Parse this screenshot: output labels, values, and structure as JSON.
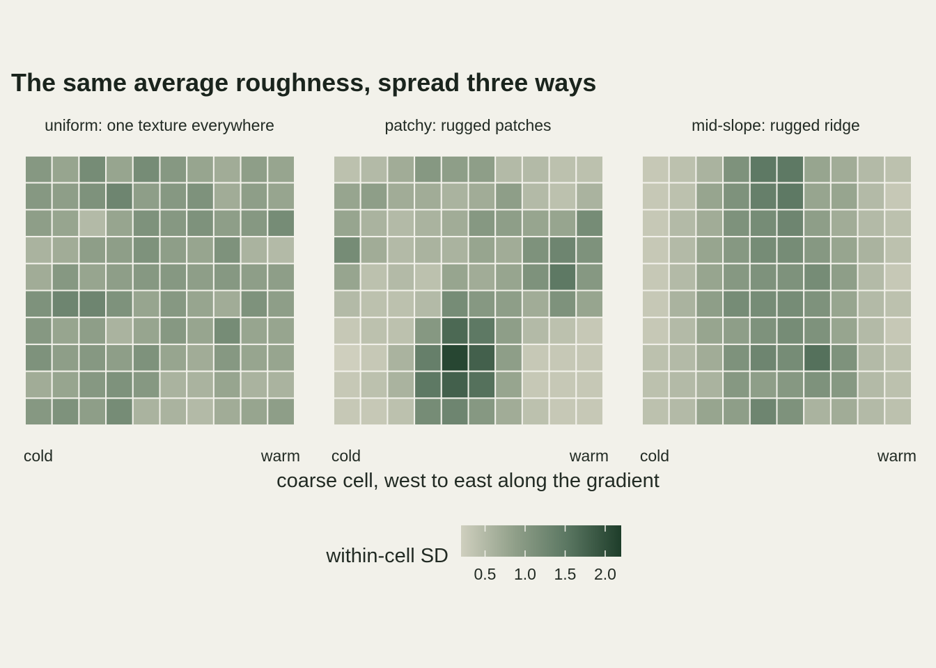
{
  "chart_data": {
    "type": "heatmap",
    "title": "The same average roughness, spread three ways",
    "xlabel": "coarse cell, west to east along the gradient",
    "x_tick_labels": [
      "cold",
      "warm"
    ],
    "colorbar": {
      "title": "within-cell SD",
      "range": [
        0.2,
        2.2
      ],
      "ticks": [
        0.5,
        1.0,
        1.5,
        2.0
      ],
      "tick_labels": [
        "0.5",
        "1.0",
        "1.5",
        "2.0"
      ],
      "colors": [
        "#cfcfbe",
        "#91a08a",
        "#5b7762",
        "#1e3d2a"
      ]
    },
    "panels": [
      {
        "label": "uniform: one texture everywhere",
        "values": [
          [
            1.0,
            0.8,
            1.2,
            0.8,
            1.2,
            1.0,
            0.8,
            0.7,
            0.9,
            0.8
          ],
          [
            1.0,
            0.9,
            1.1,
            1.3,
            0.9,
            1.0,
            1.1,
            0.7,
            0.9,
            0.8
          ],
          [
            0.9,
            0.8,
            0.5,
            0.8,
            1.1,
            1.0,
            1.1,
            0.9,
            1.0,
            1.2
          ],
          [
            0.6,
            0.7,
            0.9,
            0.9,
            1.1,
            0.9,
            0.8,
            1.1,
            0.6,
            0.5
          ],
          [
            0.7,
            1.0,
            0.8,
            0.9,
            1.0,
            1.0,
            0.9,
            1.0,
            0.9,
            0.9
          ],
          [
            1.1,
            1.3,
            1.3,
            1.1,
            0.8,
            1.0,
            0.8,
            0.7,
            1.1,
            0.9
          ],
          [
            1.0,
            0.8,
            0.9,
            0.6,
            0.8,
            1.0,
            0.8,
            1.2,
            0.8,
            0.8
          ],
          [
            1.1,
            0.9,
            1.0,
            0.9,
            1.1,
            0.8,
            0.7,
            1.0,
            0.8,
            0.8
          ],
          [
            0.7,
            0.8,
            1.0,
            1.1,
            1.0,
            0.6,
            0.6,
            0.8,
            0.6,
            0.6
          ],
          [
            1.0,
            1.1,
            0.9,
            1.2,
            0.6,
            0.6,
            0.5,
            0.7,
            0.8,
            0.9
          ]
        ]
      },
      {
        "label": "patchy: rugged patches",
        "values": [
          [
            0.4,
            0.5,
            0.7,
            1.0,
            0.9,
            0.9,
            0.5,
            0.5,
            0.4,
            0.4
          ],
          [
            0.8,
            0.9,
            0.7,
            0.7,
            0.6,
            0.7,
            0.9,
            0.5,
            0.4,
            0.6
          ],
          [
            0.8,
            0.6,
            0.5,
            0.6,
            0.7,
            1.0,
            0.9,
            0.8,
            0.8,
            1.2
          ],
          [
            1.2,
            0.7,
            0.5,
            0.6,
            0.6,
            0.8,
            0.7,
            1.1,
            1.3,
            1.1
          ],
          [
            0.8,
            0.4,
            0.5,
            0.4,
            0.8,
            0.7,
            0.8,
            1.1,
            1.5,
            1.0
          ],
          [
            0.5,
            0.4,
            0.4,
            0.5,
            1.2,
            1.0,
            0.9,
            0.7,
            1.1,
            0.8
          ],
          [
            0.3,
            0.4,
            0.4,
            1.0,
            1.7,
            1.5,
            0.9,
            0.5,
            0.4,
            0.3
          ],
          [
            0.2,
            0.3,
            0.6,
            1.4,
            2.1,
            1.8,
            0.9,
            0.3,
            0.3,
            0.3
          ],
          [
            0.3,
            0.4,
            0.6,
            1.5,
            1.8,
            1.6,
            0.8,
            0.3,
            0.3,
            0.3
          ],
          [
            0.3,
            0.3,
            0.4,
            1.2,
            1.3,
            1.0,
            0.7,
            0.4,
            0.3,
            0.3
          ]
        ]
      },
      {
        "label": "mid-slope: rugged ridge",
        "values": [
          [
            0.3,
            0.4,
            0.6,
            1.1,
            1.5,
            1.5,
            0.8,
            0.7,
            0.5,
            0.4
          ],
          [
            0.3,
            0.4,
            0.8,
            1.1,
            1.4,
            1.5,
            0.8,
            0.8,
            0.5,
            0.3
          ],
          [
            0.3,
            0.5,
            0.7,
            1.1,
            1.2,
            1.3,
            0.9,
            0.7,
            0.5,
            0.4
          ],
          [
            0.3,
            0.5,
            0.8,
            1.0,
            1.2,
            1.2,
            1.0,
            0.8,
            0.6,
            0.4
          ],
          [
            0.3,
            0.5,
            0.8,
            1.0,
            1.1,
            1.1,
            1.2,
            0.9,
            0.5,
            0.3
          ],
          [
            0.3,
            0.6,
            0.9,
            1.2,
            1.2,
            1.2,
            1.1,
            0.8,
            0.5,
            0.4
          ],
          [
            0.3,
            0.5,
            0.8,
            0.9,
            1.1,
            1.2,
            1.1,
            0.8,
            0.5,
            0.3
          ],
          [
            0.4,
            0.5,
            0.7,
            1.1,
            1.3,
            1.2,
            1.6,
            1.1,
            0.5,
            0.4
          ],
          [
            0.4,
            0.5,
            0.6,
            1.0,
            0.9,
            1.0,
            1.1,
            1.0,
            0.5,
            0.4
          ],
          [
            0.4,
            0.5,
            0.8,
            0.9,
            1.3,
            1.1,
            0.6,
            0.7,
            0.5,
            0.4
          ]
        ]
      }
    ]
  }
}
